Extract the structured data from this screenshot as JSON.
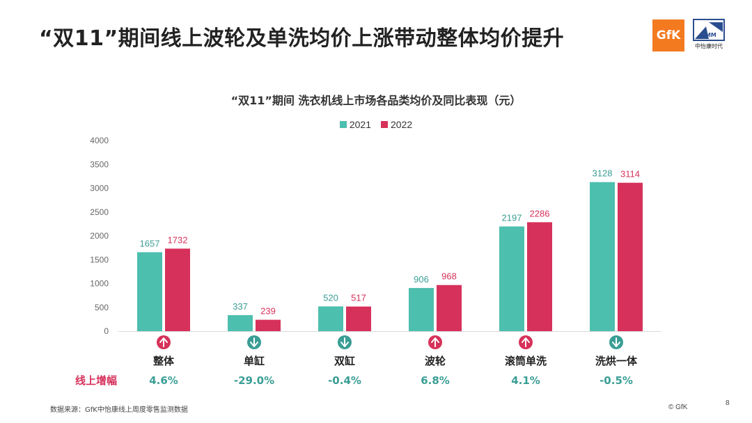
{
  "page": {
    "title": "“双11”期间线上波轮及单洗均价上涨带动整体均价提升",
    "source_note": "数据来源：GfK中怡康线上周度零售监测数据",
    "copyright": "© GfK",
    "page_number": "8",
    "logos": {
      "gfk": "GfK",
      "cmm": "CMM",
      "cmm_name": "中怡康时代"
    }
  },
  "colors": {
    "series_2021": "#4dbfae",
    "series_2022": "#d6315a",
    "up": "#d6315a",
    "down": "#3a9e95"
  },
  "growth_row_label": "线上增幅",
  "chart_data": {
    "type": "bar",
    "title": "“双11”期间 洗衣机线上市场各品类均价及同比表现（元）",
    "categories": [
      "整体",
      "单缸",
      "双缸",
      "波轮",
      "滚筒单洗",
      "洗烘一体"
    ],
    "series": [
      {
        "name": "2021",
        "values": [
          1657,
          337,
          520,
          906,
          2197,
          3128
        ]
      },
      {
        "name": "2022",
        "values": [
          1732,
          239,
          517,
          968,
          2286,
          3114
        ]
      }
    ],
    "growth": [
      "4.6%",
      "-29.0%",
      "-0.4%",
      "6.8%",
      "4.1%",
      "-0.5%"
    ],
    "trend": [
      "up",
      "down",
      "down",
      "up",
      "up",
      "down"
    ],
    "ylim": [
      0,
      4000
    ],
    "yticks": [
      0,
      500,
      1000,
      1500,
      2000,
      2500,
      3000,
      3500,
      4000
    ],
    "legend": "top-center",
    "grid": false,
    "xlabel": "",
    "ylabel": ""
  }
}
